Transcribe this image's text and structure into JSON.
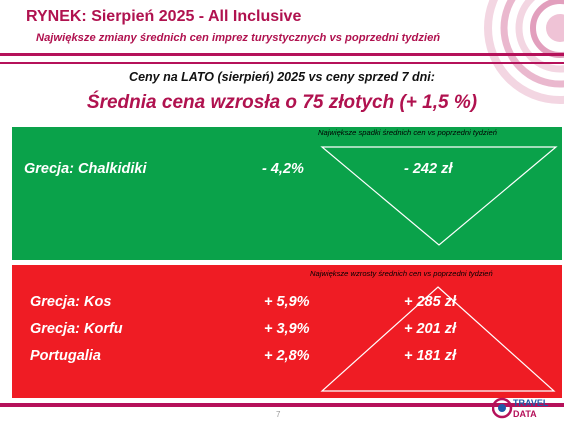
{
  "header": {
    "title": "RYNEK: Sierpień 2025 - All Inclusive",
    "subtitle": "Największe zmiany średnich cen imprez turystycznych vs poprzedni tydzień"
  },
  "intro": "Ceny na LATO (sierpień) 2025 vs ceny sprzed 7 dni:",
  "headline": "Średnia cena wzrosła o 75 złotych (+ 1,5 %)",
  "decreases": {
    "caption": "Największe spadki średnich cen vs poprzedni tydzień",
    "rows": [
      {
        "name": "Grecja: Chalkidiki",
        "percent": "-  4,2%",
        "amount": "- 242 zł"
      }
    ]
  },
  "increases": {
    "caption": "Największe wzrosty średnich cen vs poprzedni tydzień",
    "rows": [
      {
        "name": "Grecja: Kos",
        "percent": "+ 5,9%",
        "amount": "+ 285 zł"
      },
      {
        "name": "Grecja: Korfu",
        "percent": "+ 3,9%",
        "amount": "+ 201 zł"
      },
      {
        "name": "Portugalia",
        "percent": "+ 2,8%",
        "amount": "+ 181 zł"
      }
    ]
  },
  "footer": {
    "page_number": "7",
    "logo_text_top": "TRAVEL",
    "logo_text_bottom": "DATA"
  },
  "colors": {
    "accent": "#b0124f",
    "green_panel": "#0aa24a",
    "red_panel": "#ef1c24"
  }
}
